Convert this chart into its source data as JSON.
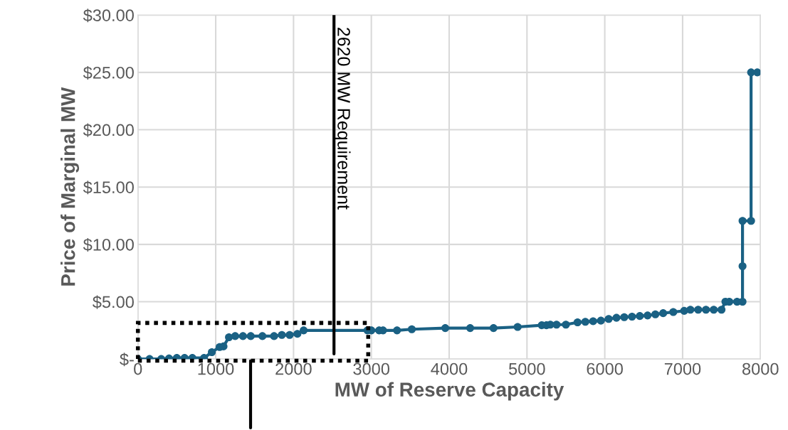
{
  "chart_data": {
    "type": "line",
    "xlabel": "MW of Reserve Capacity",
    "ylabel": "Price of Marginal MW",
    "xlim": [
      0,
      8000
    ],
    "xticks": [
      0,
      1000,
      2000,
      3000,
      4000,
      5000,
      6000,
      7000,
      8000
    ],
    "ylim": [
      0,
      30
    ],
    "yticks": [
      {
        "value": 0,
        "label": "$-"
      },
      {
        "value": 5,
        "label": "$5.00"
      },
      {
        "value": 10,
        "label": "$10.00"
      },
      {
        "value": 15,
        "label": "$15.00"
      },
      {
        "value": 20,
        "label": "$20.00"
      },
      {
        "value": 25,
        "label": "$25.00"
      },
      {
        "value": 30,
        "label": "$30.00"
      }
    ],
    "grid": true,
    "marker": "circle",
    "line_style": "solid",
    "series": [
      {
        "color": "#1a6184",
        "x": [
          0,
          150,
          300,
          400,
          500,
          600,
          700,
          850,
          950,
          1050,
          1100,
          1170,
          1250,
          1350,
          1450,
          1600,
          1750,
          1850,
          1950,
          2050,
          2130,
          2950,
          3000,
          3100,
          3150,
          3330,
          3520,
          3950,
          4270,
          4570,
          4880,
          5190,
          5250,
          5300,
          5380,
          5500,
          5650,
          5750,
          5850,
          5950,
          6050,
          6150,
          6250,
          6350,
          6450,
          6550,
          6650,
          6750,
          6880,
          7020,
          7100,
          7200,
          7300,
          7400,
          7500,
          7550,
          7600,
          7700,
          7770,
          7770,
          7770,
          7880,
          7880,
          7960
        ],
        "values": [
          0,
          0,
          0,
          0.05,
          0.1,
          0.1,
          0.1,
          0.1,
          0.6,
          1.05,
          1.1,
          1.9,
          2.0,
          2.0,
          2.0,
          2.0,
          2.0,
          2.1,
          2.1,
          2.2,
          2.5,
          2.5,
          2.5,
          2.5,
          2.5,
          2.5,
          2.6,
          2.7,
          2.7,
          2.7,
          2.8,
          2.95,
          2.95,
          3.0,
          3.0,
          3.0,
          3.2,
          3.25,
          3.3,
          3.35,
          3.5,
          3.6,
          3.65,
          3.7,
          3.75,
          3.8,
          3.9,
          4.0,
          4.1,
          4.2,
          4.3,
          4.3,
          4.3,
          4.3,
          4.3,
          5.0,
          5.0,
          5.0,
          5.0,
          8.1,
          12.05,
          12.05,
          25,
          25
        ]
      }
    ],
    "ref_lines": [
      {
        "axis": "x",
        "value": 2520,
        "label": "2620 MW Requirement",
        "color": "#000000",
        "line_style": "solid"
      }
    ]
  }
}
